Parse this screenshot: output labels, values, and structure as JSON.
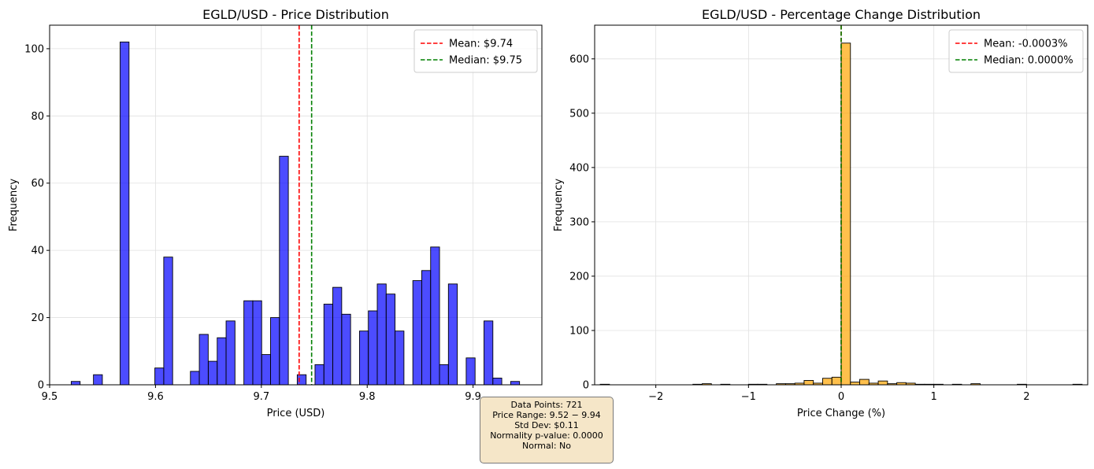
{
  "chart_data": [
    {
      "type": "bar",
      "title": "EGLD/USD - Price Distribution",
      "xlabel": "Price (USD)",
      "ylabel": "Frequency",
      "xlim": [
        9.5,
        9.965
      ],
      "ylim": [
        0,
        107
      ],
      "xticks": [
        9.5,
        9.6,
        9.7,
        9.8,
        9.9
      ],
      "xtick_labels": [
        "9.5",
        "9.6",
        "9.7",
        "9.8",
        "9.9"
      ],
      "yticks": [
        0,
        20,
        40,
        60,
        80,
        100
      ],
      "ytick_labels": [
        "0",
        "20",
        "40",
        "60",
        "80",
        "100"
      ],
      "grid": true,
      "legend_position": "top-right",
      "bar_color": "#0000ff",
      "bin_width": 0.00841,
      "bins": [
        {
          "x": 9.5204,
          "count": 1
        },
        {
          "x": 9.5414,
          "count": 3
        },
        {
          "x": 9.5666,
          "count": 102
        },
        {
          "x": 9.5994,
          "count": 5
        },
        {
          "x": 9.6078,
          "count": 38
        },
        {
          "x": 9.633,
          "count": 4
        },
        {
          "x": 9.6414,
          "count": 15
        },
        {
          "x": 9.6499,
          "count": 7
        },
        {
          "x": 9.6583,
          "count": 14
        },
        {
          "x": 9.6667,
          "count": 19
        },
        {
          "x": 9.6835,
          "count": 25
        },
        {
          "x": 9.6919,
          "count": 25
        },
        {
          "x": 9.7003,
          "count": 9
        },
        {
          "x": 9.7087,
          "count": 20
        },
        {
          "x": 9.7171,
          "count": 68
        },
        {
          "x": 9.7339,
          "count": 3
        },
        {
          "x": 9.7507,
          "count": 6
        },
        {
          "x": 9.7591,
          "count": 24
        },
        {
          "x": 9.7675,
          "count": 29
        },
        {
          "x": 9.7759,
          "count": 21
        },
        {
          "x": 9.7927,
          "count": 16
        },
        {
          "x": 9.8011,
          "count": 22
        },
        {
          "x": 9.8095,
          "count": 30
        },
        {
          "x": 9.8179,
          "count": 27
        },
        {
          "x": 9.8263,
          "count": 16
        },
        {
          "x": 9.8431,
          "count": 31
        },
        {
          "x": 9.8515,
          "count": 34
        },
        {
          "x": 9.8599,
          "count": 41
        },
        {
          "x": 9.8683,
          "count": 6
        },
        {
          "x": 9.8767,
          "count": 30
        },
        {
          "x": 9.8935,
          "count": 8
        },
        {
          "x": 9.9103,
          "count": 19
        },
        {
          "x": 9.9187,
          "count": 2
        },
        {
          "x": 9.9355,
          "count": 1
        }
      ],
      "reference_lines": [
        {
          "label": "Mean: $9.74",
          "x": 9.7357,
          "color": "#ff0000"
        },
        {
          "label": "Median: $9.75",
          "x": 9.7475,
          "color": "#008000"
        }
      ]
    },
    {
      "type": "bar",
      "title": "EGLD/USD - Percentage Change Distribution",
      "xlabel": "Price Change (%)",
      "ylabel": "Frequency",
      "xlim": [
        -2.66,
        2.66
      ],
      "ylim": [
        0,
        662
      ],
      "xticks": [
        -2,
        -1,
        0,
        1,
        2
      ],
      "xtick_labels": [
        "−2",
        "−1",
        "0",
        "1",
        "2"
      ],
      "yticks": [
        0,
        100,
        200,
        300,
        400,
        500,
        600
      ],
      "ytick_labels": [
        "0",
        "100",
        "200",
        "300",
        "400",
        "500",
        "600"
      ],
      "grid": true,
      "legend_position": "top-right",
      "bar_color": "#ffa500",
      "bin_width": 0.1,
      "bins": [
        {
          "x": -2.6,
          "count": 1
        },
        {
          "x": -1.6,
          "count": 1
        },
        {
          "x": -1.5,
          "count": 2
        },
        {
          "x": -1.3,
          "count": 1
        },
        {
          "x": -1.0,
          "count": 1
        },
        {
          "x": -0.9,
          "count": 1
        },
        {
          "x": -0.7,
          "count": 2
        },
        {
          "x": -0.6,
          "count": 2
        },
        {
          "x": -0.5,
          "count": 3
        },
        {
          "x": -0.4,
          "count": 8
        },
        {
          "x": -0.3,
          "count": 3
        },
        {
          "x": -0.2,
          "count": 12
        },
        {
          "x": -0.1,
          "count": 14
        },
        {
          "x": 0.0,
          "count": 629
        },
        {
          "x": 0.1,
          "count": 5
        },
        {
          "x": 0.2,
          "count": 10
        },
        {
          "x": 0.3,
          "count": 3
        },
        {
          "x": 0.4,
          "count": 7
        },
        {
          "x": 0.5,
          "count": 2
        },
        {
          "x": 0.6,
          "count": 4
        },
        {
          "x": 0.7,
          "count": 3
        },
        {
          "x": 0.8,
          "count": 1
        },
        {
          "x": 0.9,
          "count": 1
        },
        {
          "x": 1.0,
          "count": 1
        },
        {
          "x": 1.2,
          "count": 1
        },
        {
          "x": 1.4,
          "count": 2
        },
        {
          "x": 1.9,
          "count": 1
        },
        {
          "x": 2.5,
          "count": 1
        }
      ],
      "reference_lines": [
        {
          "label": "Mean: -0.0003%",
          "x": -0.0003,
          "color": "#ff0000"
        },
        {
          "label": "Median: 0.0000%",
          "x": 0.0,
          "color": "#008000"
        }
      ]
    }
  ],
  "stats_box": {
    "lines": [
      "Data Points: 721",
      "Price Range: 9.52 − 9.94",
      "Std Dev: $0.11",
      "Normality p-value: 0.0000",
      "Normal: No"
    ]
  }
}
